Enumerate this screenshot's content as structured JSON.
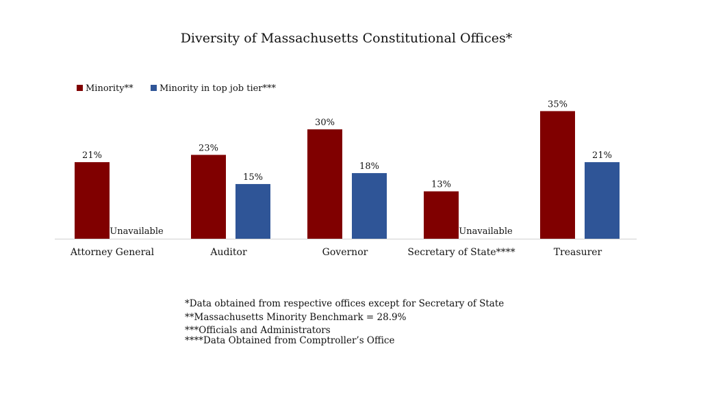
{
  "chart_data": {
    "type": "bar",
    "title": "Diversity of Massachusetts Constitutional Offices*",
    "categories": [
      "Attorney General",
      "Auditor",
      "Governor",
      "Secretary of State****",
      "Treasurer"
    ],
    "series": [
      {
        "name": "Minority**",
        "color": "#800000",
        "values": [
          21,
          23,
          30,
          13,
          35
        ],
        "labels": [
          "21%",
          "23%",
          "30%",
          "13%",
          "35%"
        ]
      },
      {
        "name": "Minority in top job tier***",
        "color": "#2f5597",
        "values": [
          null,
          15,
          18,
          null,
          21
        ],
        "labels": [
          "Unavailable",
          "15%",
          "18%",
          "Unavailable",
          "21%"
        ]
      }
    ],
    "ylim": [
      0,
      35
    ],
    "grid": false,
    "legend_position": "top-left",
    "footnotes": [
      "*Data obtained from respective offices except for Secretary of State",
      "**Massachusetts Minority Benchmark = 28.9%",
      "***Officials and Administrators",
      "****Data Obtained from Comptroller’s Office"
    ]
  }
}
